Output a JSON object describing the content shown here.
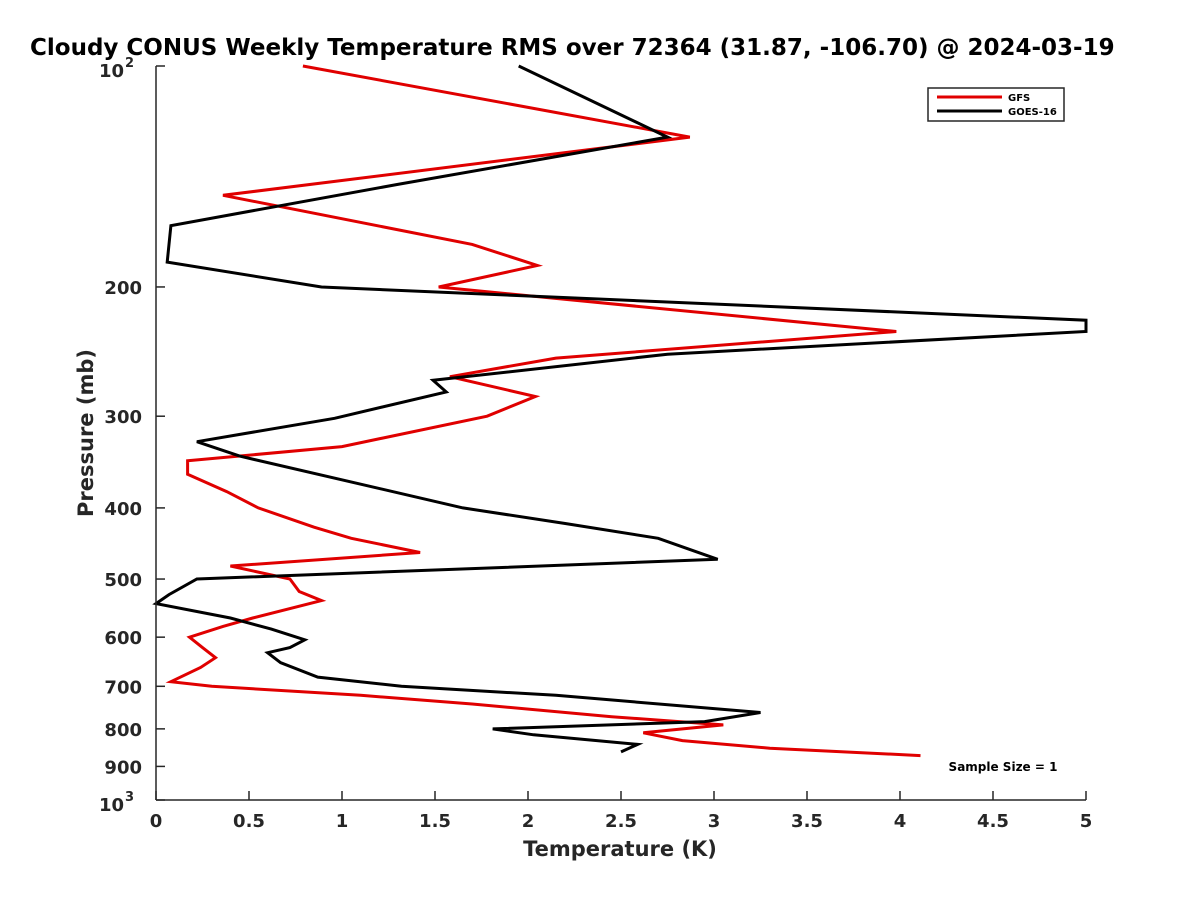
{
  "chart_data": {
    "type": "line",
    "title": "Cloudy CONUS Weekly Temperature RMS over 72364 (31.87, -106.70) @ 2024-03-19",
    "xlabel": "Temperature (K)",
    "ylabel": "Pressure (mb)",
    "xlim": [
      0,
      5
    ],
    "ylim": [
      100,
      1000
    ],
    "y_scale": "log",
    "y_reversed": true,
    "x_ticks": [
      "0",
      "0.5",
      "1",
      "1.5",
      "2",
      "2.5",
      "3",
      "3.5",
      "4",
      "4.5",
      "5"
    ],
    "y_ticks": [
      {
        "value": 100,
        "base": "10",
        "exp": "2"
      },
      {
        "value": 200,
        "label": "200"
      },
      {
        "value": 300,
        "label": "300"
      },
      {
        "value": 400,
        "label": "400"
      },
      {
        "value": 500,
        "label": "500"
      },
      {
        "value": 600,
        "label": "600"
      },
      {
        "value": 700,
        "label": "700"
      },
      {
        "value": 800,
        "label": "800"
      },
      {
        "value": 900,
        "label": "900"
      },
      {
        "value": 1000,
        "base": "10",
        "exp": "3"
      }
    ],
    "grid": false,
    "legend_position": "top-right",
    "annotation": "Sample Size = 1",
    "series": [
      {
        "name": "GFS",
        "color": "#e00000",
        "points": [
          [
            0.79,
            100
          ],
          [
            2.87,
            125
          ],
          [
            0.36,
            150
          ],
          [
            1.7,
            175
          ],
          [
            2.05,
            187
          ],
          [
            1.52,
            200
          ],
          [
            3.98,
            230
          ],
          [
            2.15,
            250
          ],
          [
            1.58,
            265
          ],
          [
            2.04,
            282
          ],
          [
            1.78,
            300
          ],
          [
            1.0,
            330
          ],
          [
            0.17,
            345
          ],
          [
            0.17,
            360
          ],
          [
            0.38,
            380
          ],
          [
            0.55,
            400
          ],
          [
            0.85,
            425
          ],
          [
            1.05,
            440
          ],
          [
            1.42,
            460
          ],
          [
            0.4,
            480
          ],
          [
            0.72,
            500
          ],
          [
            0.77,
            520
          ],
          [
            0.89,
            535
          ],
          [
            0.52,
            565
          ],
          [
            0.36,
            580
          ],
          [
            0.18,
            600
          ],
          [
            0.25,
            620
          ],
          [
            0.32,
            640
          ],
          [
            0.24,
            660
          ],
          [
            0.08,
            690
          ],
          [
            0.3,
            700
          ],
          [
            1.1,
            720
          ],
          [
            1.7,
            740
          ],
          [
            2.45,
            770
          ],
          [
            3.05,
            790
          ],
          [
            2.62,
            810
          ],
          [
            2.83,
            830
          ],
          [
            3.3,
            850
          ],
          [
            4.11,
            870
          ]
        ]
      },
      {
        "name": "GOES-16",
        "color": "#000000",
        "points": [
          [
            1.95,
            100
          ],
          [
            2.75,
            125
          ],
          [
            1.3,
            145
          ],
          [
            0.08,
            165
          ],
          [
            0.06,
            185
          ],
          [
            0.89,
            200
          ],
          [
            5.0,
            222
          ],
          [
            5.0,
            230
          ],
          [
            2.75,
            247
          ],
          [
            1.49,
            268
          ],
          [
            1.56,
            278
          ],
          [
            0.96,
            302
          ],
          [
            0.22,
            325
          ],
          [
            0.45,
            340
          ],
          [
            1.65,
            400
          ],
          [
            2.2,
            420
          ],
          [
            2.7,
            440
          ],
          [
            3.02,
            470
          ],
          [
            0.22,
            500
          ],
          [
            0.07,
            525
          ],
          [
            0.0,
            540
          ],
          [
            0.4,
            565
          ],
          [
            0.62,
            585
          ],
          [
            0.8,
            605
          ],
          [
            0.72,
            620
          ],
          [
            0.6,
            630
          ],
          [
            0.67,
            650
          ],
          [
            0.87,
            680
          ],
          [
            1.32,
            700
          ],
          [
            2.15,
            720
          ],
          [
            3.25,
            760
          ],
          [
            2.95,
            782
          ],
          [
            1.81,
            800
          ],
          [
            2.03,
            815
          ],
          [
            2.59,
            840
          ],
          [
            2.5,
            860
          ]
        ]
      }
    ]
  }
}
